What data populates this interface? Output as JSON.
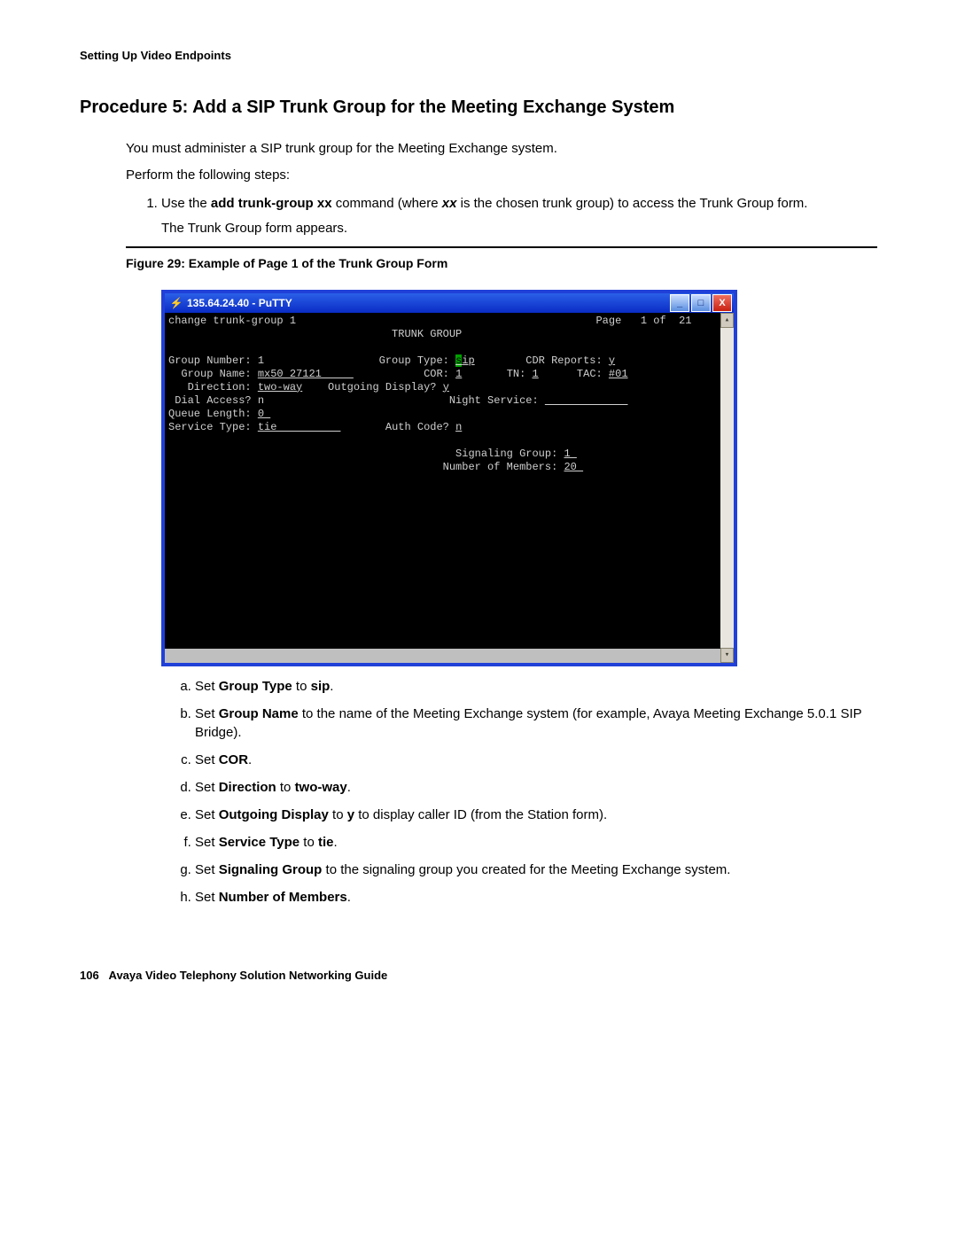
{
  "header": {
    "running_head": "Setting Up Video Endpoints"
  },
  "title": "Procedure 5: Add a SIP Trunk Group for the Meeting Exchange System",
  "intro1": "You must administer a SIP trunk group for the Meeting Exchange system.",
  "intro2": "Perform the following steps:",
  "step1_a": "Use the ",
  "step1_b_bold": "add trunk-group xx",
  "step1_c": " command (where ",
  "step1_d_bi": "xx",
  "step1_e": " is the chosen trunk group) to access the Trunk Group form.",
  "step1_sub": "The Trunk Group form appears.",
  "figure_caption": "Figure 29: Example of Page 1 of the Trunk Group Form",
  "terminal": {
    "title": "135.64.24.40 - PuTTY",
    "colors": {
      "frame": "#2040d8",
      "titlebar_top": "#2a5fe8",
      "titlebar_bottom": "#0a2cc4",
      "body_bg": "#000000",
      "body_fg": "#cfcfcf",
      "highlight_bg": "#00a000",
      "statusbar_bg": "#bfbfbf",
      "scrollbar_bg": "#e4e2dc",
      "close_bg": "#c82010"
    },
    "cmdline_left": "change trunk-group 1",
    "cmdline_right": "Page   1 of  21",
    "heading": "TRUNK GROUP",
    "rows": {
      "group_number": "1",
      "group_type": "sip",
      "cdr_reports": "y",
      "group_name": "mx50 27121",
      "cor": "1",
      "tn": "1",
      "tac": "#01",
      "direction": "two-way",
      "outgoing_display": "y",
      "dial_access": "n",
      "night_service": "",
      "queue_length": "0",
      "service_type": "tie",
      "auth_code": "n",
      "signaling_group": "1",
      "number_of_members": "20"
    }
  },
  "substeps": {
    "a": {
      "pre": "Set ",
      "b1": "Group Type",
      "mid": " to ",
      "b2": "sip",
      "post": "."
    },
    "b": {
      "pre": "Set ",
      "b1": "Group Name",
      "post": " to the name of the Meeting Exchange system (for example, Avaya Meeting Exchange 5.0.1 SIP Bridge)."
    },
    "c": {
      "pre": "Set ",
      "b1": "COR",
      "post": "."
    },
    "d": {
      "pre": "Set ",
      "b1": "Direction",
      "mid": " to ",
      "b2": "two-way",
      "post": "."
    },
    "e": {
      "pre": "Set ",
      "b1": "Outgoing Display",
      "mid": " to ",
      "b2": "y",
      "post": " to display caller ID (from the Station form)."
    },
    "f": {
      "pre": "Set ",
      "b1": "Service Type",
      "mid": " to ",
      "b2": "tie",
      "post": "."
    },
    "g": {
      "pre": "Set ",
      "b1": "Signaling Group",
      "post": " to the signaling group you created for the Meeting Exchange system."
    },
    "h": {
      "pre": "Set ",
      "b1": "Number of Members",
      "post": "."
    }
  },
  "footer": {
    "page_num": "106",
    "doc_title": "Avaya Video Telephony Solution Networking Guide"
  }
}
